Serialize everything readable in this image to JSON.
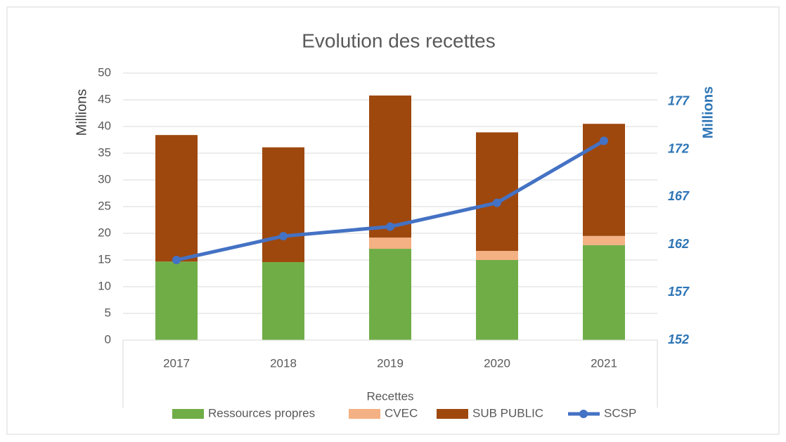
{
  "chart_data": {
    "type": "bar",
    "stacked": true,
    "title": "Evolution des recettes",
    "y_label": "Millions",
    "y2_label": "Millions",
    "x_label": "Recettes",
    "categories": [
      "2017",
      "2018",
      "2019",
      "2020",
      "2021"
    ],
    "series": [
      {
        "name": "Ressources propres",
        "color": "#70ad47",
        "values": [
          14.7,
          14.6,
          17.1,
          15.0,
          17.8
        ]
      },
      {
        "name": "CVEC",
        "color": "#f4b183",
        "values": [
          0,
          0,
          2.1,
          1.7,
          1.7
        ]
      },
      {
        "name": "SUB PUBLIC",
        "color": "#9e480e",
        "values": [
          23.7,
          21.5,
          26.6,
          22.2,
          21.0
        ]
      },
      {
        "name": "SCSP",
        "color": "#4472c4",
        "type": "line",
        "axis": "y2",
        "values": [
          160.4,
          162.9,
          163.9,
          166.4,
          172.9
        ]
      }
    ],
    "ylim": [
      0,
      50
    ],
    "yticks": [
      0,
      5,
      10,
      15,
      20,
      25,
      30,
      35,
      40,
      45,
      50
    ],
    "y2lim": [
      152,
      180
    ],
    "y2ticks": [
      152,
      157,
      162,
      167,
      172,
      177
    ],
    "grid": true,
    "legend": "bottom"
  }
}
